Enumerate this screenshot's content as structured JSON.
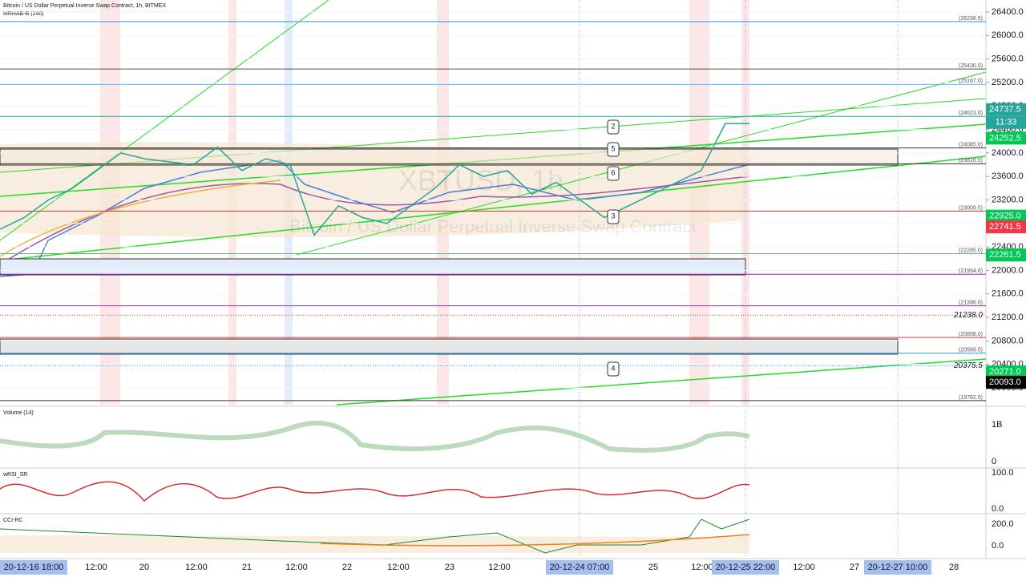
{
  "header": {
    "title": "Bitcoin / US Dollar Perpetual Inverse Swap Contract, 1h, BITMEX",
    "indicator": "MRHAB-B (240)"
  },
  "watermark": {
    "symbol": "XBTUSD, 1h",
    "description": "Bitcoin / US Dollar Perpetual Inverse Swap Contract"
  },
  "chart_data": {
    "type": "line",
    "ylim": [
      19713,
      26605
    ],
    "yticks": [
      {
        "value": 26400,
        "label": "26400.0"
      },
      {
        "value": 26000,
        "label": "26000.0"
      },
      {
        "value": 25600,
        "label": "25600.0"
      },
      {
        "value": 25200,
        "label": "25200.0"
      },
      {
        "value": 24800,
        "label": "24800.0"
      },
      {
        "value": 24400,
        "label": "24400.0"
      },
      {
        "value": 24000,
        "label": "24000.0"
      },
      {
        "value": 23600,
        "label": "23600.0"
      },
      {
        "value": 23200,
        "label": "23200.0"
      },
      {
        "value": 22800,
        "label": "22800.0"
      },
      {
        "value": 22400,
        "label": "22400.0"
      },
      {
        "value": 22000,
        "label": "22000.0"
      },
      {
        "value": 21600,
        "label": "21600.0"
      },
      {
        "value": 21200,
        "label": "21200.0"
      },
      {
        "value": 20800,
        "label": "20800.0"
      },
      {
        "value": 20400,
        "label": "20400.0"
      },
      {
        "value": 20000,
        "label": "20000.0"
      }
    ],
    "series": [
      {
        "name": "XBTUSD",
        "color": "#26a69a",
        "values": [
          22700,
          22900,
          23200,
          23400,
          23700,
          24000,
          23900,
          23850,
          23800,
          24100,
          23700,
          23900,
          23800,
          22600,
          23100,
          22900,
          22800,
          23100,
          23400,
          23800,
          23600,
          23700,
          23300,
          23500,
          23200,
          22900,
          23100,
          23300,
          23500,
          23700,
          24500,
          24500
        ]
      }
    ],
    "levels": [
      {
        "value": 26236.5,
        "label": "(26236.5)",
        "color": "#2196f3"
      },
      {
        "value": 25430,
        "label": "(25430.0)",
        "color": "#555555"
      },
      {
        "value": 25167,
        "label": "(25167.0)",
        "color": "#64b5f6"
      },
      {
        "value": 24623,
        "label": "(24623.0)",
        "color": "#26a69a"
      },
      {
        "value": 24085,
        "label": "(24085.0)",
        "color": "#333333"
      },
      {
        "value": 23816.5,
        "label": "(23816.5)",
        "color": "#333333"
      },
      {
        "value": 23009.5,
        "label": "(23009.5)",
        "color": "#e53935"
      },
      {
        "value": 22285,
        "label": "(22285.0)",
        "color": "#66bb6a"
      },
      {
        "value": 21934,
        "label": "(21934.0)",
        "color": "#9c27b0"
      },
      {
        "value": 21396,
        "label": "(21396.0)",
        "color": "#9c27b0"
      },
      {
        "value": 20858,
        "label": "(20858.0)",
        "color": "#e53935"
      },
      {
        "value": 20589.5,
        "label": "(20589.5)",
        "color": "#2196f3"
      },
      {
        "value": 19782.5,
        "label": "(19782.5)",
        "color": "#333333"
      }
    ],
    "italic_levels": [
      {
        "value": 21238,
        "label": "21238.0"
      },
      {
        "value": 20375.5,
        "label": "20375.5"
      }
    ],
    "price_tags": [
      {
        "value": 24737.5,
        "color": "#26a69a"
      },
      {
        "value": 24252.5,
        "color": "#00c853"
      },
      {
        "value": 22925,
        "label": "22925.0",
        "color": "#00c853"
      },
      {
        "value": 22741.5,
        "color": "#f23645"
      },
      {
        "value": 22261.5,
        "color": "#00c853"
      },
      {
        "value": 20271,
        "label": "20271.0",
        "color": "#00c853"
      },
      {
        "value": 20093,
        "label": "20093.0",
        "color": "#000000"
      }
    ],
    "countdown": "11:33",
    "waves": [
      "2",
      "5",
      "6",
      "3",
      "4"
    ]
  },
  "time_axis": [
    "20-12-16  18:00",
    "12:00",
    "20",
    "12:00",
    "21",
    "12:00",
    "22",
    "12:00",
    "23",
    "12:00",
    "20-12-24  07:00",
    "25",
    "12:00",
    "20-12-25  22:00",
    "12:00",
    "27",
    "20-12-27  10:00",
    "28"
  ],
  "panes": [
    {
      "name": "Volume (14)",
      "top": "1B",
      "bottom": "0"
    },
    {
      "name": "wRSI_SR",
      "top": "100.0",
      "bottom": "0.0"
    },
    {
      "name": "CCI-RC",
      "top": "200.0",
      "bottom": "0.0"
    }
  ]
}
